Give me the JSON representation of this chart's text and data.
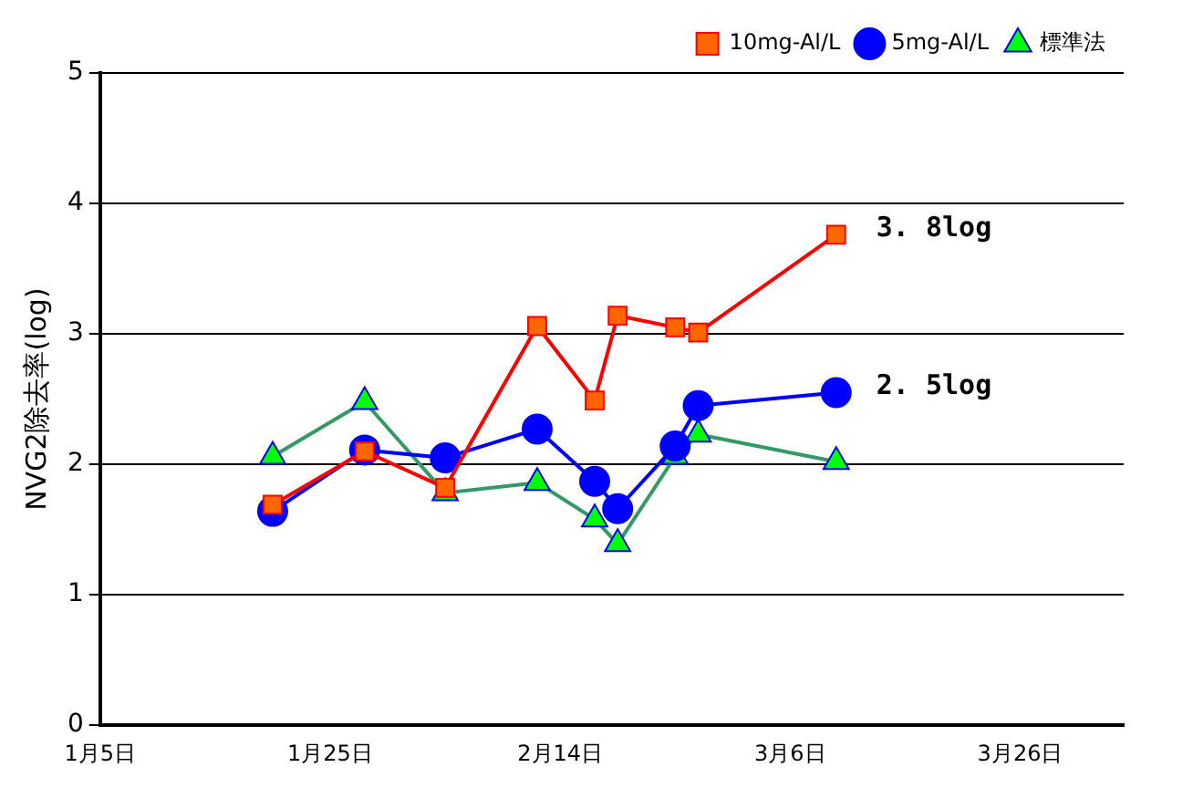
{
  "chart_data": {
    "type": "line",
    "ylabel": "NVG2除去率(log)",
    "x": [
      "--01-20",
      "--01-28",
      "--02-04",
      "--02-12",
      "--02-17",
      "--02-19",
      "--02-24",
      "--02-26",
      "--03-10"
    ],
    "series": [
      {
        "name": "10mg-Al/L",
        "color": "#ff0000",
        "marker": "square",
        "values": [
          1.69,
          2.1,
          1.82,
          3.06,
          2.49,
          3.14,
          3.05,
          3.01,
          3.76
        ]
      },
      {
        "name": "5mg-Al/L",
        "color": "#0000ff",
        "marker": "circle",
        "values": [
          1.64,
          2.11,
          2.05,
          2.27,
          1.87,
          1.66,
          2.14,
          2.45,
          2.55
        ]
      },
      {
        "name": "標準法",
        "color": "#339966",
        "marker": "triangle",
        "values": [
          2.06,
          2.48,
          1.78,
          1.86,
          1.58,
          1.39,
          2.06,
          2.23,
          2.02
        ]
      }
    ],
    "xlim": [
      "--01-05",
      "--04-04"
    ],
    "xticks": [
      {
        "value": "--01-05",
        "label": "1月5日"
      },
      {
        "value": "--01-25",
        "label": "1月25日"
      },
      {
        "value": "--02-14",
        "label": "2月14日"
      },
      {
        "value": "--03-06",
        "label": "3月6日"
      },
      {
        "value": "--03-26",
        "label": "3月26日"
      }
    ],
    "ylim": [
      0,
      5
    ],
    "yticks": [
      0,
      1,
      2,
      3,
      4,
      5
    ],
    "grid": "y",
    "legend": "top right",
    "annotations": [
      {
        "text": "3. 8log",
        "x": "--03-10",
        "y": 3.76
      },
      {
        "text": "2. 5log",
        "x": "--03-10",
        "y": 2.55
      }
    ]
  }
}
